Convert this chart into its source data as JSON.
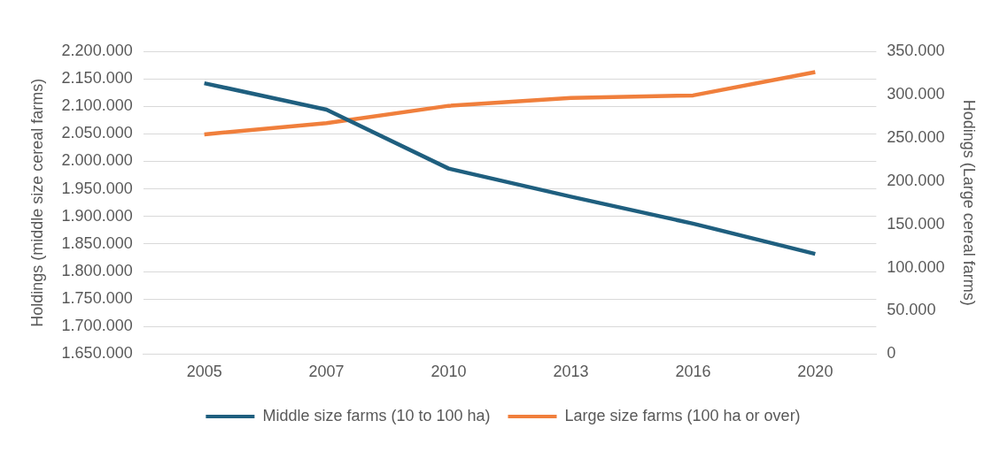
{
  "chart_data": {
    "type": "line",
    "categories": [
      "2005",
      "2007",
      "2010",
      "2013",
      "2016",
      "2020"
    ],
    "series": [
      {
        "name": "Middle size farms (10 to 100 ha)",
        "color": "#1f5f7f",
        "values": [
          2142000,
          2094000,
          1987000,
          1936000,
          1887000,
          1832000
        ]
      },
      {
        "name": "Large size farms (100 ha or over)",
        "color": "#f07f3c",
        "axis": "y2",
        "values": [
          254000,
          267000,
          287000,
          296000,
          299000,
          326000
        ]
      }
    ],
    "ylabel": "Holdings (middle size cereal farms)",
    "y2label": "Hodings (Large cereal farms)",
    "ylim": [
      1650000,
      2200000
    ],
    "yticks": [
      {
        "value": 1650000,
        "label": "1.650.000"
      },
      {
        "value": 1700000,
        "label": "1.700.000"
      },
      {
        "value": 1750000,
        "label": "1.750.000"
      },
      {
        "value": 1800000,
        "label": "1.800.000"
      },
      {
        "value": 1850000,
        "label": "1.850.000"
      },
      {
        "value": 1900000,
        "label": "1.900.000"
      },
      {
        "value": 1950000,
        "label": "1.950.000"
      },
      {
        "value": 2000000,
        "label": "2.000.000"
      },
      {
        "value": 2050000,
        "label": "2.050.000"
      },
      {
        "value": 2100000,
        "label": "2.100.000"
      },
      {
        "value": 2150000,
        "label": "2.150.000"
      },
      {
        "value": 2200000,
        "label": "2.200.000"
      }
    ],
    "y2lim": [
      0,
      350000
    ],
    "y2ticks": [
      0,
      {
        "value": 50000,
        "label": "50.000"
      },
      {
        "value": 100000,
        "label": "100.000"
      },
      {
        "value": 150000,
        "label": "150.000"
      },
      {
        "value": 200000,
        "label": "200.000"
      },
      {
        "value": 250000,
        "label": "250.000"
      },
      {
        "value": 300000,
        "label": "300.000"
      },
      {
        "value": 350000,
        "label": "350.000"
      }
    ],
    "grid": "y",
    "legend": "bottom",
    "marker": "none",
    "line_style": "solid"
  }
}
